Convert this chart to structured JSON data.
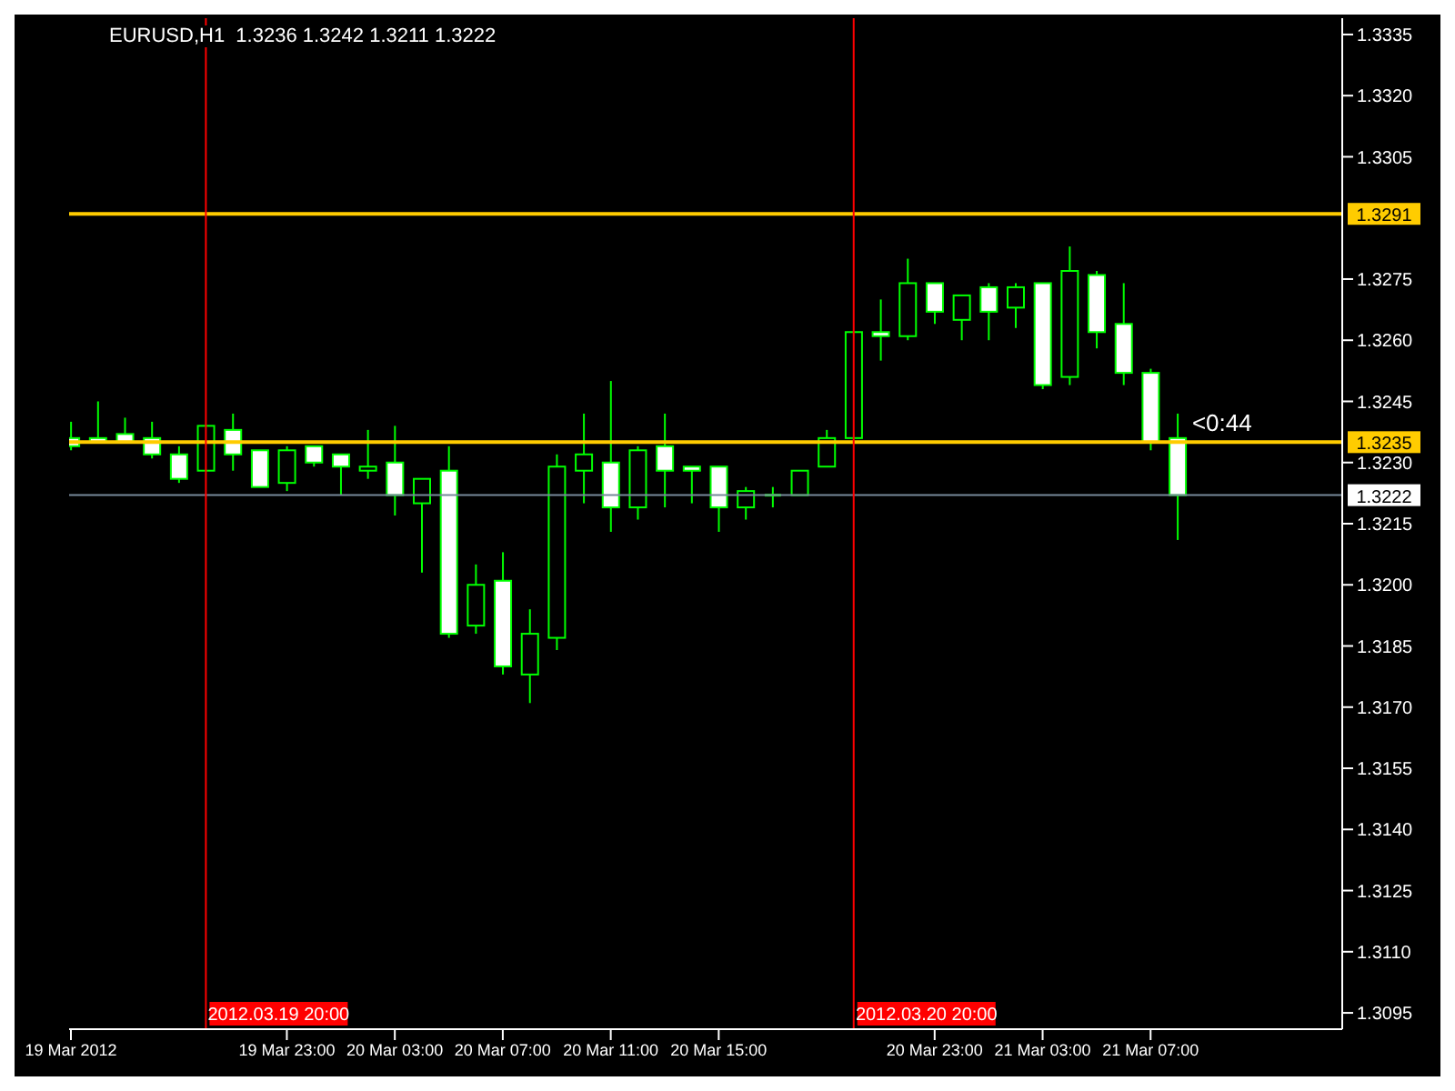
{
  "chart_data": {
    "type": "candlestick",
    "title": "EURUSD,H1  1.3236 1.3242 1.3211 1.3222",
    "color": "#00ff00",
    "x": [
      "2012-03-19T15:00",
      "2012-03-19T16:00",
      "2012-03-19T17:00",
      "2012-03-19T18:00",
      "2012-03-19T19:00",
      "2012-03-19T20:00",
      "2012-03-19T21:00",
      "2012-03-19T22:00",
      "2012-03-19T23:00",
      "2012-03-20T00:00",
      "2012-03-20T01:00",
      "2012-03-20T02:00",
      "2012-03-20T03:00",
      "2012-03-20T04:00",
      "2012-03-20T05:00",
      "2012-03-20T06:00",
      "2012-03-20T07:00",
      "2012-03-20T08:00",
      "2012-03-20T09:00",
      "2012-03-20T10:00",
      "2012-03-20T11:00",
      "2012-03-20T12:00",
      "2012-03-20T13:00",
      "2012-03-20T14:00",
      "2012-03-20T15:00",
      "2012-03-20T16:00",
      "2012-03-20T17:00",
      "2012-03-20T18:00",
      "2012-03-20T19:00",
      "2012-03-20T20:00",
      "2012-03-20T21:00",
      "2012-03-20T22:00",
      "2012-03-20T23:00",
      "2012-03-21T00:00",
      "2012-03-21T01:00",
      "2012-03-21T02:00",
      "2012-03-21T03:00",
      "2012-03-21T04:00",
      "2012-03-21T05:00",
      "2012-03-21T06:00",
      "2012-03-21T07:00",
      "2012-03-21T08:00"
    ],
    "ohlc": [
      [
        1.3236,
        1.324,
        1.3233,
        1.3234
      ],
      [
        1.3236,
        1.3245,
        1.3235,
        1.3235
      ],
      [
        1.3237,
        1.3241,
        1.3235,
        1.3235
      ],
      [
        1.3236,
        1.324,
        1.3231,
        1.3232
      ],
      [
        1.3232,
        1.3234,
        1.3225,
        1.3226
      ],
      [
        1.3228,
        1.3239,
        1.3228,
        1.3239
      ],
      [
        1.3238,
        1.3242,
        1.3228,
        1.3232
      ],
      [
        1.3233,
        1.3233,
        1.3224,
        1.3224
      ],
      [
        1.3225,
        1.3234,
        1.3223,
        1.3233
      ],
      [
        1.3234,
        1.3234,
        1.3229,
        1.323
      ],
      [
        1.3232,
        1.3232,
        1.3222,
        1.3229
      ],
      [
        1.3228,
        1.3238,
        1.3226,
        1.3229
      ],
      [
        1.323,
        1.3239,
        1.3217,
        1.3222
      ],
      [
        1.322,
        1.3226,
        1.3203,
        1.3226
      ],
      [
        1.3228,
        1.3234,
        1.3187,
        1.3188
      ],
      [
        1.319,
        1.3205,
        1.3188,
        1.32
      ],
      [
        1.3201,
        1.3208,
        1.3178,
        1.318
      ],
      [
        1.3178,
        1.3194,
        1.3171,
        1.3188
      ],
      [
        1.3187,
        1.3232,
        1.3184,
        1.3229
      ],
      [
        1.3228,
        1.3242,
        1.322,
        1.3232
      ],
      [
        1.323,
        1.325,
        1.3213,
        1.3219
      ],
      [
        1.3219,
        1.3234,
        1.3216,
        1.3233
      ],
      [
        1.3234,
        1.3242,
        1.3219,
        1.3228
      ],
      [
        1.3229,
        1.3229,
        1.322,
        1.3228
      ],
      [
        1.3229,
        1.3229,
        1.3213,
        1.3219
      ],
      [
        1.3219,
        1.3224,
        1.3216,
        1.3223
      ],
      [
        1.3222,
        1.3224,
        1.3219,
        1.3222
      ],
      [
        1.3222,
        1.3228,
        1.3222,
        1.3228
      ],
      [
        1.3229,
        1.3238,
        1.3229,
        1.3236
      ],
      [
        1.3236,
        1.3262,
        1.3236,
        1.3262
      ],
      [
        1.3262,
        1.327,
        1.3255,
        1.3261
      ],
      [
        1.3261,
        1.328,
        1.326,
        1.3274
      ],
      [
        1.3274,
        1.3274,
        1.3264,
        1.3267
      ],
      [
        1.3265,
        1.3271,
        1.326,
        1.3271
      ],
      [
        1.3273,
        1.3274,
        1.326,
        1.3267
      ],
      [
        1.3268,
        1.3274,
        1.3263,
        1.3273
      ],
      [
        1.3274,
        1.3274,
        1.3248,
        1.3249
      ],
      [
        1.3251,
        1.3283,
        1.3249,
        1.3277
      ],
      [
        1.3276,
        1.3277,
        1.3258,
        1.3262
      ],
      [
        1.3264,
        1.3274,
        1.3249,
        1.3252
      ],
      [
        1.3252,
        1.3253,
        1.3233,
        1.3235
      ],
      [
        1.3236,
        1.3242,
        1.3211,
        1.3222
      ]
    ],
    "xlim": [
      "2012-03-19T14:56",
      "2012-03-21T14:06"
    ],
    "xticks": [
      {
        "value": "2012-03-19T15:00",
        "label": "19 Mar 2012"
      },
      {
        "value": "2012-03-19T23:00",
        "label": "19 Mar 23:00"
      },
      {
        "value": "2012-03-20T03:00",
        "label": "20 Mar 03:00"
      },
      {
        "value": "2012-03-20T07:00",
        "label": "20 Mar 07:00"
      },
      {
        "value": "2012-03-20T11:00",
        "label": "20 Mar 11:00"
      },
      {
        "value": "2012-03-20T15:00",
        "label": "20 Mar 15:00"
      },
      {
        "value": "2012-03-20T23:00",
        "label": "20 Mar 23:00"
      },
      {
        "value": "2012-03-21T03:00",
        "label": "21 Mar 03:00"
      },
      {
        "value": "2012-03-21T07:00",
        "label": "21 Mar 07:00"
      }
    ],
    "ylim": [
      1.3091,
      1.3339
    ],
    "yticks": [
      1.3335,
      {
        "value": 1.332,
        "label": "1.3320"
      },
      1.3305,
      1.3275,
      {
        "value": 1.326,
        "label": "1.3260"
      },
      1.3245,
      {
        "value": 1.323,
        "label": "1.3230"
      },
      1.3215,
      {
        "value": 1.32,
        "label": "1.3200"
      },
      1.3185,
      {
        "value": 1.317,
        "label": "1.3170"
      },
      1.3155,
      {
        "value": 1.314,
        "label": "1.3140"
      },
      1.3125,
      {
        "value": 1.311,
        "label": "1.3110"
      },
      1.3095
    ],
    "ref_lines": [
      {
        "axis": "y",
        "value": 1.3291,
        "label": "1.3291",
        "color": "#ffcc00"
      },
      {
        "axis": "y",
        "value": 1.3235,
        "label": "1.3235",
        "color": "#ffcc00"
      },
      {
        "axis": "y",
        "value": 1.3222,
        "label": "1.3222",
        "color": "#778899"
      },
      {
        "axis": "x",
        "value": "2012-03-19T20:00",
        "label": "2012.03.19 20:00",
        "color": "#ff0000"
      },
      {
        "axis": "x",
        "value": "2012-03-20T20:00",
        "label": "2012.03.20 20:00",
        "color": "#ff0000"
      }
    ],
    "annotations": [
      {
        "text": "<0:44",
        "x": "2012-03-21T08:00",
        "y": 1.3236
      }
    ],
    "grid": false,
    "legend": false
  }
}
